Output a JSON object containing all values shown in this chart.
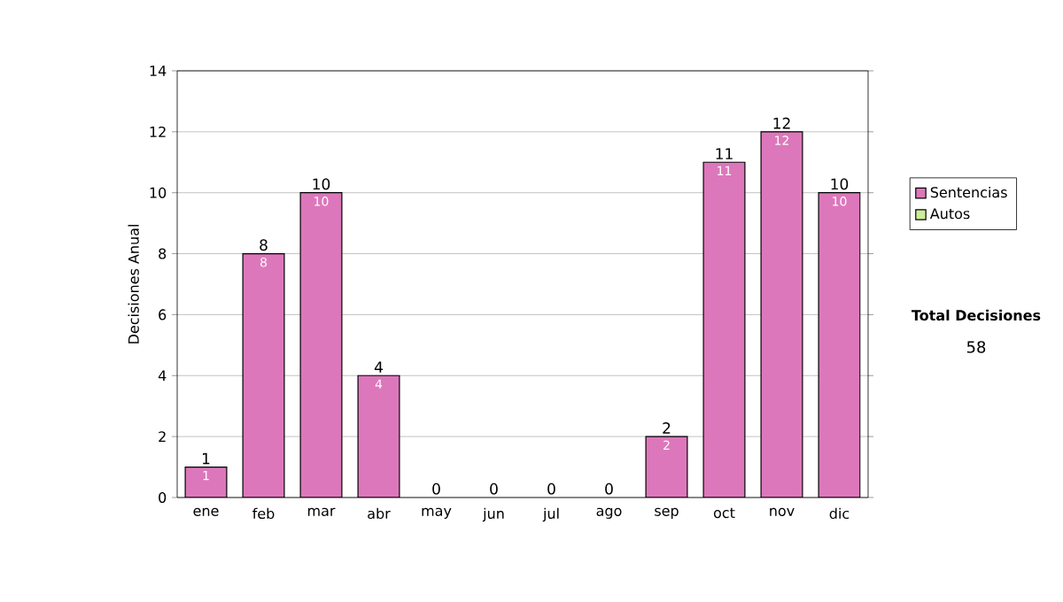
{
  "chart_data": {
    "type": "bar",
    "ylabel": "Decisiones Anual",
    "categories": [
      "ene",
      "feb",
      "mar",
      "abr",
      "may",
      "jun",
      "jul",
      "ago",
      "sep",
      "oct",
      "nov",
      "dic"
    ],
    "stacked": true,
    "series": [
      {
        "name": "Sentencias",
        "color": "#dd77bb",
        "values": [
          1,
          8,
          10,
          4,
          0,
          0,
          0,
          0,
          2,
          11,
          12,
          10
        ],
        "value_labels": [
          "1",
          "8",
          "10",
          "4",
          null,
          null,
          null,
          null,
          "2",
          "11",
          "12",
          "10"
        ]
      },
      {
        "name": "Autos",
        "color": "#ccee99",
        "values": [
          0,
          0,
          0,
          0,
          0,
          0,
          0,
          0,
          0,
          0,
          0,
          0
        ]
      }
    ],
    "totals": [
      "1",
      "8",
      "10",
      "4",
      "0",
      "0",
      "0",
      "0",
      "2",
      "11",
      "12",
      "10"
    ],
    "ylim": [
      0,
      14
    ],
    "yticks": [
      0,
      2,
      4,
      6,
      8,
      10,
      12,
      14
    ],
    "grid": "y",
    "legend": "right",
    "annotations": [
      "Total Decisiones",
      "58"
    ]
  }
}
